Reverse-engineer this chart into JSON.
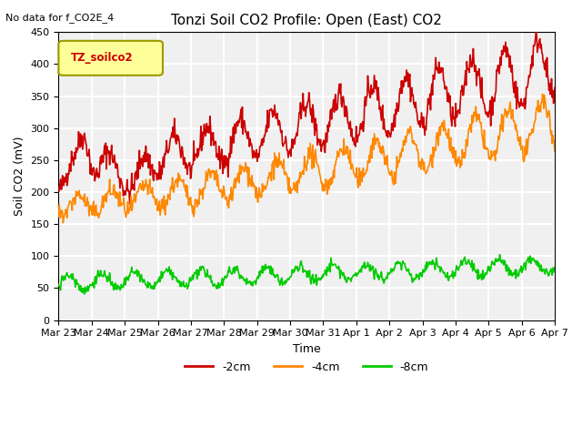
{
  "title": "Tonzi Soil CO2 Profile: Open (East) CO2",
  "subtitle": "No data for f_CO2E_4",
  "ylabel": "Soil CO2 (mV)",
  "xlabel": "Time",
  "ylim": [
    0,
    450
  ],
  "legend_label": "TZ_soilco2",
  "series": {
    "neg2cm": {
      "label": "-2cm",
      "color": "#cc0000"
    },
    "neg4cm": {
      "label": "-4cm",
      "color": "#ff8800"
    },
    "neg8cm": {
      "label": "-8cm",
      "color": "#00cc00"
    }
  },
  "x_ticks": [
    "Mar 23",
    "Mar 24",
    "Mar 25",
    "Mar 26",
    "Mar 27",
    "Mar 28",
    "Mar 29",
    "Mar 30",
    "Mar 31",
    "Apr 1",
    "Apr 2",
    "Apr 3",
    "Apr 4",
    "Apr 5",
    "Apr 6",
    "Apr 7"
  ],
  "background_color": "#f0f0f0",
  "plot_bg_color": "#f0f0f0"
}
